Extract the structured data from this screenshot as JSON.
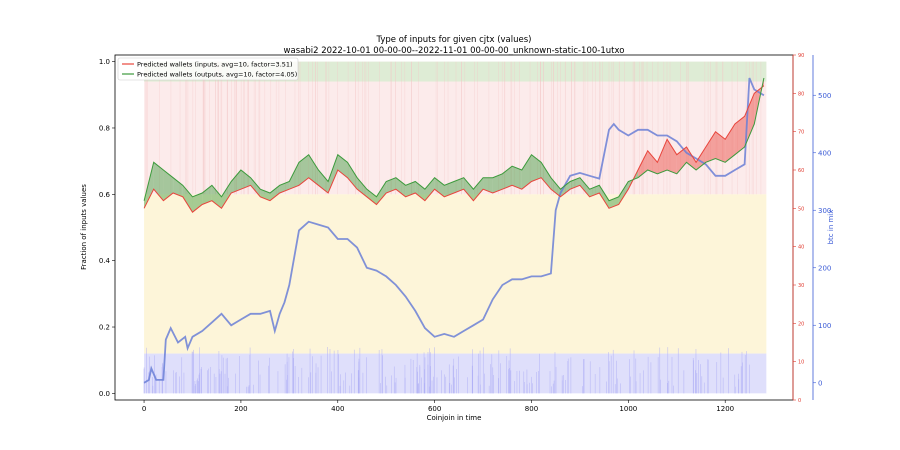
{
  "chart_data": {
    "type": "line",
    "title": "Type of inputs for given cjtx (values)",
    "subtitle": "wasabi2 2022-10-01 00-00-00--2022-11-01 00-00-00_unknown-static-100-1utxo",
    "xlabel": "Coinjoin in time",
    "ylabel_left": "Fraction of inputs values",
    "ylabel_right": "btc in mix",
    "xlim": [
      -60,
      1340
    ],
    "ylim_left": [
      -0.02,
      1.02
    ],
    "ylim_red": [
      0,
      90
    ],
    "ylim_blue": [
      -30,
      570
    ],
    "x_ticks": [
      0,
      200,
      400,
      600,
      800,
      1000,
      1200
    ],
    "y_ticks_left": [
      0.0,
      0.2,
      0.4,
      0.6,
      0.8,
      1.0
    ],
    "y_ticks_red": [
      0,
      10,
      20,
      30,
      40,
      50,
      60,
      70,
      80,
      90
    ],
    "y_ticks_blue": [
      0,
      100,
      200,
      300,
      400,
      500
    ],
    "legend_position": "top-left",
    "colors": {
      "inputs": "#e8453c",
      "outputs": "#3c9a3c",
      "btc": "#6a7fd6",
      "red_axis": "#e03a2f",
      "blue_axis": "#3b5bd6"
    },
    "series": [
      {
        "name": "Predicted wallets (inputs, avg=10, factor=3.51)",
        "axis": "red",
        "x": [
          0,
          20,
          40,
          60,
          80,
          100,
          120,
          140,
          160,
          180,
          200,
          220,
          240,
          260,
          280,
          300,
          320,
          340,
          360,
          380,
          400,
          420,
          440,
          460,
          480,
          500,
          520,
          540,
          560,
          580,
          600,
          620,
          640,
          660,
          680,
          700,
          720,
          740,
          760,
          780,
          800,
          820,
          840,
          860,
          880,
          900,
          920,
          940,
          960,
          980,
          1000,
          1020,
          1040,
          1060,
          1080,
          1100,
          1120,
          1140,
          1160,
          1180,
          1200,
          1220,
          1240,
          1260,
          1280
        ],
        "values": [
          50,
          55,
          52,
          54,
          53,
          49,
          51,
          52,
          50,
          54,
          55,
          56,
          53,
          52,
          54,
          55,
          56,
          58,
          56,
          54,
          60,
          58,
          55,
          53,
          51,
          54,
          55,
          53,
          54,
          52,
          55,
          53,
          54,
          55,
          52,
          55,
          54,
          55,
          56,
          55,
          57,
          58,
          55,
          53,
          55,
          56,
          53,
          54,
          50,
          51,
          55,
          60,
          65,
          62,
          68,
          64,
          66,
          62,
          66,
          70,
          68,
          72,
          74,
          80,
          82
        ]
      },
      {
        "name": "Predicted wallets (outputs, avg=10, factor=4.05)",
        "axis": "red",
        "x": [
          0,
          20,
          40,
          60,
          80,
          100,
          120,
          140,
          160,
          180,
          200,
          220,
          240,
          260,
          280,
          300,
          320,
          340,
          360,
          380,
          400,
          420,
          440,
          460,
          480,
          500,
          520,
          540,
          560,
          580,
          600,
          620,
          640,
          660,
          680,
          700,
          720,
          740,
          760,
          780,
          800,
          820,
          840,
          860,
          880,
          900,
          920,
          940,
          960,
          980,
          1000,
          1020,
          1040,
          1060,
          1080,
          1100,
          1120,
          1140,
          1160,
          1180,
          1200,
          1220,
          1240,
          1260,
          1280
        ],
        "values": [
          52,
          62,
          60,
          58,
          56,
          53,
          54,
          56,
          53,
          57,
          60,
          58,
          55,
          54,
          56,
          57,
          62,
          64,
          60,
          57,
          64,
          62,
          58,
          55,
          53,
          57,
          58,
          56,
          57,
          55,
          58,
          56,
          57,
          58,
          55,
          58,
          58,
          59,
          61,
          60,
          64,
          62,
          58,
          55,
          57,
          58,
          55,
          56,
          52,
          53,
          57,
          58,
          60,
          59,
          60,
          59,
          62,
          60,
          62,
          63,
          62,
          64,
          66,
          72,
          84
        ]
      },
      {
        "name": "btc in mix",
        "axis": "blue",
        "x": [
          0,
          10,
          15,
          25,
          40,
          45,
          55,
          70,
          85,
          90,
          100,
          120,
          140,
          160,
          180,
          200,
          220,
          240,
          260,
          270,
          280,
          290,
          300,
          320,
          340,
          360,
          380,
          400,
          420,
          440,
          460,
          480,
          500,
          520,
          540,
          560,
          580,
          600,
          620,
          640,
          660,
          680,
          700,
          720,
          740,
          760,
          780,
          800,
          820,
          840,
          850,
          860,
          880,
          900,
          920,
          940,
          960,
          970,
          980,
          1000,
          1020,
          1040,
          1060,
          1080,
          1100,
          1120,
          1140,
          1160,
          1180,
          1200,
          1220,
          1240,
          1250,
          1260,
          1280
        ],
        "values": [
          0,
          5,
          25,
          5,
          5,
          75,
          95,
          70,
          80,
          60,
          80,
          90,
          105,
          120,
          100,
          110,
          120,
          120,
          125,
          90,
          120,
          140,
          170,
          265,
          280,
          275,
          270,
          250,
          250,
          235,
          200,
          195,
          185,
          170,
          150,
          125,
          95,
          80,
          85,
          80,
          90,
          100,
          110,
          145,
          170,
          180,
          180,
          185,
          185,
          190,
          300,
          330,
          360,
          365,
          360,
          355,
          440,
          450,
          440,
          430,
          440,
          440,
          430,
          430,
          420,
          400,
          390,
          380,
          360,
          360,
          370,
          380,
          530,
          510,
          500
        ]
      }
    ],
    "background_bands": [
      "pink (top)",
      "light yellow (middle)",
      "light blue (bottom)",
      "green fringe near 1.0"
    ]
  }
}
